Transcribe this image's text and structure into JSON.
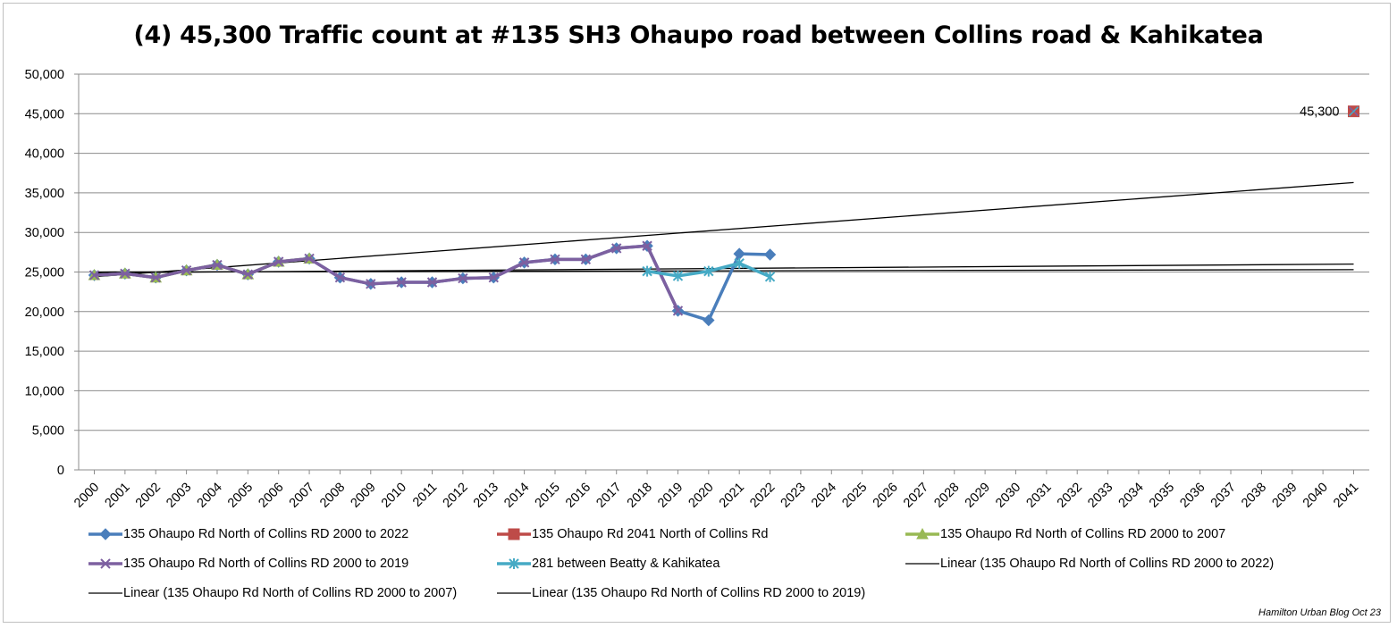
{
  "chart_data": {
    "type": "line",
    "title": "(4) 45,300 Traffic count at #135 SH3 Ohaupo road between Collins road & Kahikatea",
    "x": [
      "2000",
      "2001",
      "2002",
      "2003",
      "2004",
      "2005",
      "2006",
      "2007",
      "2008",
      "2009",
      "2010",
      "2011",
      "2012",
      "2013",
      "2014",
      "2015",
      "2016",
      "2017",
      "2018",
      "2019",
      "2020",
      "2021",
      "2022",
      "2023",
      "2024",
      "2025",
      "2026",
      "2027",
      "2028",
      "2029",
      "2030",
      "2031",
      "2032",
      "2033",
      "2034",
      "2035",
      "2036",
      "2037",
      "2038",
      "2039",
      "2040",
      "2041"
    ],
    "ylim": [
      0,
      50000
    ],
    "yticks": [
      "0",
      "5,000",
      "10,000",
      "15,000",
      "20,000",
      "25,000",
      "30,000",
      "35,000",
      "40,000",
      "45,000",
      "50,000"
    ],
    "grid": true,
    "legend_position": "bottom",
    "series": [
      {
        "name": "135 Ohaupo Rd North of Collins RD 2000 to 2022",
        "color": "#4a7ebb",
        "marker": "diamond",
        "points": [
          [
            2000,
            24600
          ],
          [
            2001,
            24800
          ],
          [
            2002,
            24300
          ],
          [
            2003,
            25200
          ],
          [
            2004,
            25900
          ],
          [
            2005,
            24700
          ],
          [
            2006,
            26300
          ],
          [
            2007,
            26700
          ],
          [
            2008,
            24300
          ],
          [
            2009,
            23500
          ],
          [
            2010,
            23700
          ],
          [
            2011,
            23700
          ],
          [
            2012,
            24200
          ],
          [
            2013,
            24300
          ],
          [
            2014,
            26200
          ],
          [
            2015,
            26600
          ],
          [
            2016,
            26600
          ],
          [
            2017,
            28000
          ],
          [
            2018,
            28300
          ],
          [
            2019,
            20100
          ],
          [
            2020,
            18900
          ],
          [
            2021,
            27300
          ],
          [
            2022,
            27200
          ]
        ]
      },
      {
        "name": "135 Ohaupo Rd 2041 North of Collins Rd",
        "color": "#be4b48",
        "marker": "square",
        "points": [
          [
            2041,
            45300
          ]
        ],
        "data_label": "45,300"
      },
      {
        "name": "135 Ohaupo Rd North of Collins RD 2000 to 2007",
        "color": "#98b954",
        "marker": "triangle",
        "points": [
          [
            2000,
            24600
          ],
          [
            2001,
            24800
          ],
          [
            2002,
            24300
          ],
          [
            2003,
            25200
          ],
          [
            2004,
            25900
          ],
          [
            2005,
            24700
          ],
          [
            2006,
            26300
          ],
          [
            2007,
            26700
          ]
        ]
      },
      {
        "name": "135 Ohaupo Rd North of Collins RD 2000 to 2019",
        "color": "#7d60a0",
        "marker": "x",
        "points": [
          [
            2000,
            24600
          ],
          [
            2001,
            24800
          ],
          [
            2002,
            24300
          ],
          [
            2003,
            25200
          ],
          [
            2004,
            25900
          ],
          [
            2005,
            24700
          ],
          [
            2006,
            26300
          ],
          [
            2007,
            26700
          ],
          [
            2008,
            24300
          ],
          [
            2009,
            23500
          ],
          [
            2010,
            23700
          ],
          [
            2011,
            23700
          ],
          [
            2012,
            24200
          ],
          [
            2013,
            24300
          ],
          [
            2014,
            26200
          ],
          [
            2015,
            26600
          ],
          [
            2016,
            26600
          ],
          [
            2017,
            28000
          ],
          [
            2018,
            28300
          ],
          [
            2019,
            20100
          ]
        ]
      },
      {
        "name": "281 between Beatty & Kahikatea",
        "color": "#46aac5",
        "marker": "star",
        "points": [
          [
            2018,
            25100
          ],
          [
            2019,
            24500
          ],
          [
            2020,
            25100
          ],
          [
            2021,
            26100
          ],
          [
            2022,
            24400
          ]
        ]
      },
      {
        "name": "Linear (135 Ohaupo Rd North of Collins RD 2000 to 2022)",
        "color": "#000000",
        "marker": "none",
        "trend": true,
        "points": [
          [
            2000,
            24900
          ],
          [
            2041,
            26000
          ]
        ]
      },
      {
        "name": "Linear (135 Ohaupo Rd North of Collins RD 2000 to 2007)",
        "color": "#000000",
        "marker": "none",
        "trend": true,
        "points": [
          [
            2000,
            24400
          ],
          [
            2041,
            36300
          ]
        ]
      },
      {
        "name": "Linear (135 Ohaupo Rd North of Collins RD 2000 to 2019)",
        "color": "#000000",
        "marker": "none",
        "trend": true,
        "points": [
          [
            2000,
            25000
          ],
          [
            2041,
            25300
          ]
        ]
      }
    ]
  },
  "credit": "Hamilton Urban Blog Oct 23"
}
